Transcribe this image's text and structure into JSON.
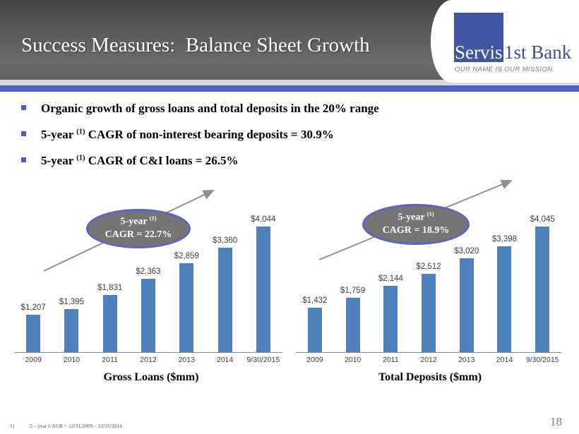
{
  "header": {
    "title": "Success Measures:  Balance Sheet Growth"
  },
  "logo": {
    "name_left": "Servis",
    "name_right": "1st Bank",
    "tagline": "OUR NAME IS OUR MISSION."
  },
  "bullets": [
    {
      "pre": "Organic growth of gross loans and total deposits in the 20% range",
      "sup": "",
      "post": ""
    },
    {
      "pre": "5-year ",
      "sup": "(1)",
      "post": " CAGR of non-interest bearing deposits = 30.9%"
    },
    {
      "pre": "5-year ",
      "sup": "(1)",
      "post": " CAGR of C&I loans = 26.5%"
    }
  ],
  "chart_data": [
    {
      "type": "bar",
      "title": "Gross Loans ($mm)",
      "categories": [
        "2009",
        "2010",
        "2011",
        "2012",
        "2013",
        "2014",
        "9/30/2015"
      ],
      "values": [
        1207,
        1395,
        1831,
        2363,
        2859,
        3360,
        4044
      ],
      "labels": [
        "$1,207",
        "$1,395",
        "$1,831",
        "$2,363",
        "$2,859",
        "$3,360",
        "$4,044"
      ],
      "badge": {
        "line1_pre": "5-year ",
        "line1_sup": "(1)",
        "line2": "CAGR = 22.7%"
      },
      "bar_color": "#4f81bd",
      "xlabel": "",
      "ylabel": "",
      "ylim": [
        0,
        4400
      ],
      "grid": false,
      "legend": "none",
      "data_labels": true
    },
    {
      "type": "bar",
      "title": "Total Deposits ($mm)",
      "categories": [
        "2009",
        "2010",
        "2011",
        "2012",
        "2013",
        "2014",
        "9/30/2015"
      ],
      "values": [
        1432,
        1759,
        2144,
        2512,
        3020,
        3398,
        4045
      ],
      "labels": [
        "$1,432",
        "$1,759",
        "$2,144",
        "$2,512",
        "$3,020",
        "$3,398",
        "$4,045"
      ],
      "badge": {
        "line1_pre": "5-year ",
        "line1_sup": "(1)",
        "line2": "CAGR = 18.9%"
      },
      "bar_color": "#4f81bd",
      "xlabel": "",
      "ylabel": "",
      "ylim": [
        0,
        4400
      ],
      "grid": false,
      "legend": "none",
      "data_labels": true
    }
  ],
  "footer": {
    "note_marker": "1)",
    "note_text": "5 – year CAGR = 12/31/2009 – 12/31/2014",
    "page_number": "18"
  },
  "colors": {
    "bar": "#4f81bd",
    "accent_line": "#5560c5",
    "header_strip": "#d8dade",
    "ellipse_fill": "#757575",
    "ellipse_border": "#5a64c8",
    "logo_blue": "#4156a2",
    "arrow": "#8f8f8f",
    "axis": "#8a8a8a",
    "label_text": "#3f3f3f"
  }
}
